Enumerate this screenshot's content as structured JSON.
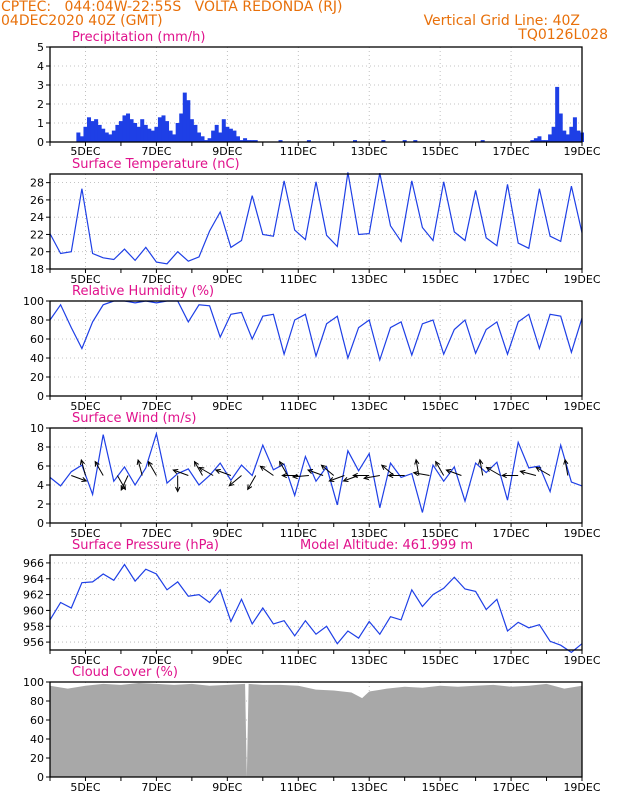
{
  "header": {
    "line1": "CPTEC:   044:04W-22:55S   VOLTA REDONDA (RJ)",
    "line2": "04DEC2020 40Z (GMT)",
    "right1": "Vertical Grid Line: 40Z",
    "right2": "TQ0126L028"
  },
  "colors": {
    "header": "#e8700a",
    "title": "#e0128c",
    "series": "#1e3fe6",
    "cloud": "#a8a8a8",
    "wind_arrow": "#000000"
  },
  "x_tick_labels": [
    "5DEC",
    "7DEC",
    "9DEC",
    "11DEC",
    "13DEC",
    "15DEC",
    "17DEC",
    "19DEC"
  ],
  "chart_data": [
    {
      "type": "bar",
      "title": "Precipitation (mm/h)",
      "ylim": [
        0,
        5
      ],
      "yticks": [
        "0",
        "1",
        "2",
        "3",
        "4",
        "5"
      ],
      "x": [
        4.8,
        4.9,
        5.0,
        5.1,
        5.2,
        5.3,
        5.4,
        5.5,
        5.6,
        5.7,
        5.8,
        5.9,
        6.0,
        6.1,
        6.2,
        6.3,
        6.4,
        6.5,
        6.6,
        6.7,
        6.8,
        6.9,
        7.0,
        7.1,
        7.2,
        7.3,
        7.4,
        7.5,
        7.6,
        7.7,
        7.8,
        7.9,
        8.0,
        8.1,
        8.2,
        8.3,
        8.4,
        8.5,
        8.6,
        8.7,
        8.8,
        8.9,
        9.0,
        9.1,
        9.2,
        9.3,
        9.4,
        9.5,
        9.6,
        9.7,
        9.8,
        10.5,
        11.3,
        12.6,
        13.4,
        14.0,
        14.3,
        16.2,
        17.6,
        17.7,
        17.8,
        17.9,
        18.0,
        18.1,
        18.2,
        18.3,
        18.4,
        18.5,
        18.6,
        18.7,
        18.8,
        18.9,
        19.0
      ],
      "values": [
        0.5,
        0.3,
        0.8,
        1.3,
        1.1,
        1.2,
        0.9,
        0.7,
        0.5,
        0.4,
        0.6,
        0.9,
        1.1,
        1.4,
        1.5,
        1.2,
        1.0,
        0.8,
        1.2,
        0.9,
        0.7,
        0.6,
        0.8,
        1.3,
        1.4,
        1.1,
        0.6,
        0.4,
        1.0,
        1.5,
        2.6,
        2.2,
        1.2,
        0.9,
        0.5,
        0.3,
        0.1,
        0.2,
        0.6,
        0.9,
        0.5,
        1.2,
        0.8,
        0.7,
        0.6,
        0.3,
        0.1,
        0.2,
        0.1,
        0.1,
        0.1,
        0.1,
        0.1,
        0.1,
        0.1,
        0.1,
        0.1,
        0.1,
        0.1,
        0.2,
        0.3,
        0.1,
        0.1,
        0.4,
        0.8,
        2.9,
        1.5,
        0.6,
        0.4,
        0.8,
        1.3,
        0.6,
        0.5
      ]
    },
    {
      "type": "line",
      "title": "Surface Temperature (nC)",
      "ylim": [
        18,
        29
      ],
      "yticks": [
        "18",
        "20",
        "22",
        "24",
        "26",
        "28"
      ],
      "series": [
        {
          "x": [
            4.0,
            4.3,
            4.6,
            4.9,
            5.2,
            5.5,
            5.8,
            6.1,
            6.4,
            6.7,
            7.0,
            7.3,
            7.6,
            7.9,
            8.2,
            8.5,
            8.8,
            9.1,
            9.4,
            9.7,
            10.0,
            10.3,
            10.6,
            10.9,
            11.2,
            11.5,
            11.8,
            12.1,
            12.4,
            12.7,
            13.0,
            13.3,
            13.6,
            13.9,
            14.2,
            14.5,
            14.8,
            15.1,
            15.4,
            15.7,
            16.0,
            16.3,
            16.6,
            16.9,
            17.2,
            17.5,
            17.8,
            18.1,
            18.4,
            18.7,
            19.0
          ],
          "values": [
            22.1,
            19.8,
            20.0,
            27.3,
            19.8,
            19.3,
            19.1,
            20.3,
            19.0,
            20.5,
            18.8,
            18.6,
            20.0,
            18.9,
            19.4,
            22.4,
            24.6,
            20.5,
            21.3,
            26.5,
            22.0,
            21.8,
            28.2,
            22.5,
            21.4,
            28.1,
            21.9,
            20.6,
            29.2,
            22.0,
            22.1,
            29.1,
            23.0,
            21.2,
            28.2,
            22.8,
            21.3,
            28.1,
            22.3,
            21.3,
            27.1,
            21.6,
            20.7,
            27.8,
            21.0,
            20.4,
            27.3,
            21.8,
            21.2,
            27.6,
            22.2
          ]
        }
      ]
    },
    {
      "type": "line",
      "title": "Relative Humidity (%)",
      "ylim": [
        0,
        100
      ],
      "yticks": [
        "0",
        "20",
        "40",
        "60",
        "80",
        "100"
      ],
      "series": [
        {
          "x": [
            4.0,
            4.3,
            4.6,
            4.9,
            5.2,
            5.5,
            5.8,
            6.1,
            6.4,
            6.7,
            7.0,
            7.3,
            7.6,
            7.9,
            8.2,
            8.5,
            8.8,
            9.1,
            9.4,
            9.7,
            10.0,
            10.3,
            10.6,
            10.9,
            11.2,
            11.5,
            11.8,
            12.1,
            12.4,
            12.7,
            13.0,
            13.3,
            13.6,
            13.9,
            14.2,
            14.5,
            14.8,
            15.1,
            15.4,
            15.7,
            16.0,
            16.3,
            16.6,
            16.9,
            17.2,
            17.5,
            17.8,
            18.1,
            18.4,
            18.7,
            19.0
          ],
          "values": [
            80,
            96,
            72,
            50,
            78,
            96,
            100,
            100,
            98,
            100,
            98,
            100,
            100,
            78,
            96,
            95,
            62,
            86,
            88,
            60,
            84,
            86,
            44,
            80,
            86,
            42,
            76,
            84,
            40,
            72,
            80,
            38,
            72,
            78,
            43,
            76,
            80,
            44,
            70,
            80,
            45,
            70,
            78,
            44,
            78,
            86,
            50,
            86,
            84,
            46,
            82
          ]
        }
      ]
    },
    {
      "type": "line",
      "title": "Surface Wind (m/s)",
      "ylim": [
        0,
        10
      ],
      "yticks": [
        "0",
        "2",
        "4",
        "6",
        "8",
        "10"
      ],
      "series": [
        {
          "x": [
            4.0,
            4.3,
            4.6,
            4.9,
            5.2,
            5.5,
            5.8,
            6.1,
            6.4,
            6.7,
            7.0,
            7.3,
            7.6,
            7.9,
            8.2,
            8.5,
            8.8,
            9.1,
            9.4,
            9.7,
            10.0,
            10.3,
            10.6,
            10.9,
            11.2,
            11.5,
            11.8,
            12.1,
            12.4,
            12.7,
            13.0,
            13.3,
            13.6,
            13.9,
            14.2,
            14.5,
            14.8,
            15.1,
            15.4,
            15.7,
            16.0,
            16.3,
            16.6,
            16.9,
            17.2,
            17.5,
            17.8,
            18.1,
            18.4,
            18.7,
            19.0
          ],
          "values": [
            4.8,
            3.9,
            5.4,
            6.1,
            3.0,
            9.3,
            4.4,
            5.9,
            4.0,
            5.8,
            9.4,
            4.2,
            5.2,
            5.7,
            4.0,
            5.0,
            6.3,
            4.5,
            6.1,
            5.0,
            8.2,
            5.6,
            6.2,
            2.9,
            7.0,
            4.4,
            5.9,
            1.9,
            7.6,
            5.5,
            7.3,
            1.6,
            6.3,
            4.8,
            5.2,
            1.1,
            6.1,
            4.4,
            5.9,
            2.3,
            6.3,
            5.3,
            6.4,
            2.4,
            8.5,
            5.8,
            6.0,
            3.3,
            8.2,
            4.3,
            3.9
          ]
        }
      ],
      "wind_vectors": {
        "x": [
          4.6,
          5.0,
          5.5,
          5.9,
          6.2,
          6.6,
          7.0,
          7.6,
          7.9,
          8.3,
          8.6,
          9.1,
          9.4,
          9.8,
          10.3,
          10.7,
          11.0,
          11.3,
          11.7,
          12.0,
          12.3,
          12.7,
          13.0,
          13.3,
          13.7,
          14.0,
          14.4,
          14.7,
          15.1,
          15.6,
          16.2,
          16.7,
          17.2,
          17.7,
          18.1,
          18.6
        ],
        "direction_deg": [
          20,
          255,
          240,
          60,
          115,
          255,
          240,
          90,
          200,
          240,
          210,
          200,
          140,
          120,
          215,
          240,
          180,
          175,
          200,
          220,
          160,
          160,
          180,
          170,
          220,
          180,
          260,
          190,
          240,
          200,
          260,
          210,
          180,
          195,
          210,
          260
        ]
      }
    },
    {
      "type": "line",
      "title": "Surface Pressure (hPa)",
      "annotation": "Model Altitude: 461.999 m",
      "ylim": [
        955,
        967
      ],
      "yticks": [
        "956",
        "958",
        "960",
        "962",
        "964",
        "966"
      ],
      "series": [
        {
          "x": [
            4.0,
            4.3,
            4.6,
            4.9,
            5.2,
            5.5,
            5.8,
            6.1,
            6.4,
            6.7,
            7.0,
            7.3,
            7.6,
            7.9,
            8.2,
            8.5,
            8.8,
            9.1,
            9.4,
            9.7,
            10.0,
            10.3,
            10.6,
            10.9,
            11.2,
            11.5,
            11.8,
            12.1,
            12.4,
            12.7,
            13.0,
            13.3,
            13.6,
            13.9,
            14.2,
            14.5,
            14.8,
            15.1,
            15.4,
            15.7,
            16.0,
            16.3,
            16.6,
            16.9,
            17.2,
            17.5,
            17.8,
            18.1,
            18.4,
            18.7,
            19.0
          ],
          "values": [
            958.8,
            961.0,
            960.3,
            963.5,
            963.6,
            964.6,
            963.8,
            965.8,
            963.7,
            965.2,
            964.6,
            962.6,
            963.6,
            961.8,
            962.0,
            961.0,
            962.6,
            958.6,
            961.4,
            958.3,
            960.3,
            958.3,
            958.7,
            956.8,
            958.7,
            957.0,
            958.0,
            955.8,
            957.4,
            956.5,
            958.6,
            957.0,
            959.2,
            958.8,
            962.6,
            960.5,
            962.0,
            962.8,
            964.2,
            962.7,
            962.4,
            960.1,
            961.4,
            957.4,
            958.5,
            957.8,
            958.2,
            956.1,
            955.6,
            954.7,
            955.8
          ]
        }
      ]
    },
    {
      "type": "area",
      "title": "Cloud Cover (%)",
      "ylim": [
        0,
        100
      ],
      "yticks": [
        "0",
        "20",
        "40",
        "60",
        "80",
        "100"
      ],
      "series": [
        {
          "x": [
            4.0,
            4.5,
            5.0,
            5.5,
            6.0,
            6.5,
            7.0,
            7.5,
            8.0,
            8.5,
            9.0,
            9.5,
            9.55,
            9.6,
            10.0,
            10.5,
            11.0,
            11.5,
            12.0,
            12.5,
            12.8,
            13.0,
            13.5,
            14.0,
            14.5,
            15.0,
            15.5,
            16.0,
            16.5,
            17.0,
            17.5,
            18.0,
            18.5,
            19.0
          ],
          "values": [
            96,
            93,
            96,
            98,
            97,
            99,
            98,
            97,
            98,
            96,
            97,
            98,
            0,
            98,
            97,
            97,
            96,
            92,
            91,
            89,
            83,
            90,
            93,
            95,
            94,
            96,
            95,
            96,
            97,
            95,
            96,
            98,
            93,
            96
          ]
        }
      ]
    }
  ]
}
